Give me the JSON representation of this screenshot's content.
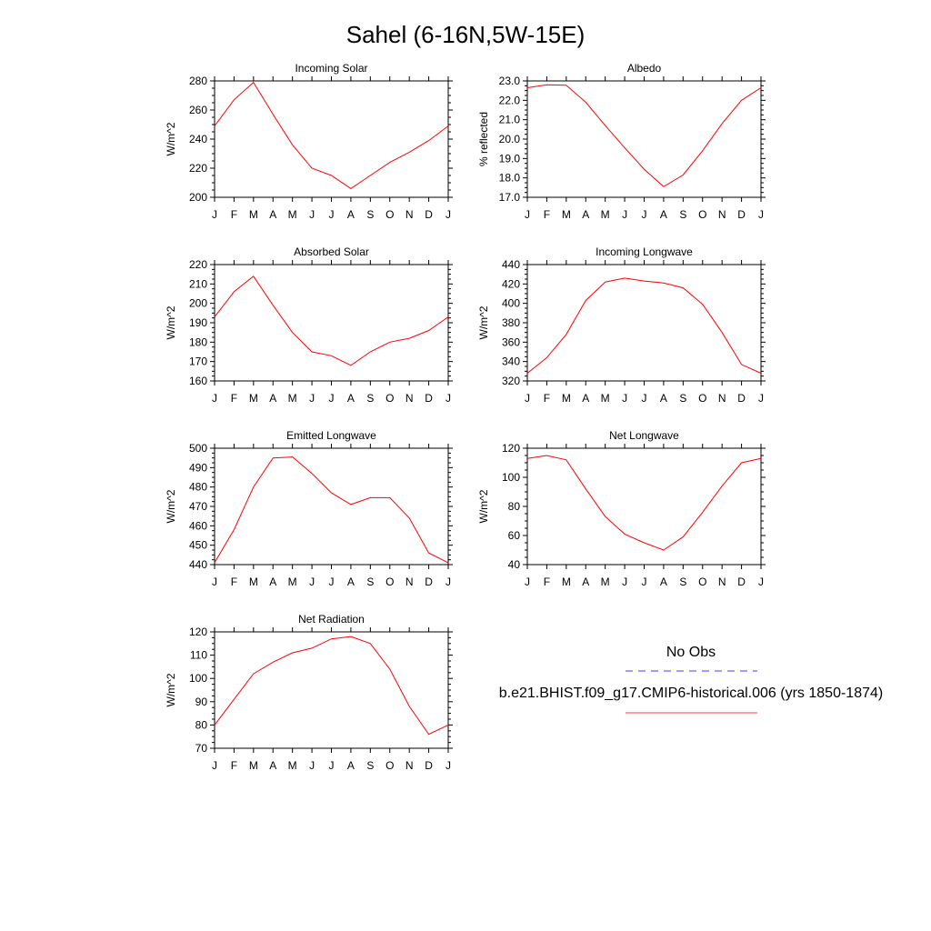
{
  "title": "Sahel (6-16N,5W-15E)",
  "months": [
    "J",
    "F",
    "M",
    "A",
    "M",
    "J",
    "J",
    "A",
    "S",
    "O",
    "N",
    "D",
    "J"
  ],
  "colors": {
    "model": "#ff0000",
    "obs": "#0000ff",
    "axis": "#000000"
  },
  "legend": {
    "obs_label": "No Obs",
    "model_label": "b.e21.BHIST.f09_g17.CMIP6-historical.006 (yrs 1850-1874)"
  },
  "chart_data": [
    {
      "type": "line",
      "title": "Incoming Solar",
      "ylabel": "W/m^2",
      "ylim": [
        200,
        280
      ],
      "yticks": [
        "200",
        "220",
        "240",
        "260",
        "280"
      ],
      "x": [
        "J",
        "F",
        "M",
        "A",
        "M",
        "J",
        "J",
        "A",
        "S",
        "O",
        "N",
        "D",
        "J"
      ],
      "series": [
        {
          "values": [
            249,
            267,
            279,
            257,
            236,
            220,
            215,
            206,
            215,
            224,
            231,
            239,
            249
          ]
        }
      ]
    },
    {
      "type": "line",
      "title": "Albedo",
      "ylabel": "% reflected",
      "ylim": [
        17.0,
        23.0
      ],
      "yticks": [
        "17.0",
        "18.0",
        "19.0",
        "20.0",
        "21.0",
        "22.0",
        "23.0"
      ],
      "x": [
        "J",
        "F",
        "M",
        "A",
        "M",
        "J",
        "J",
        "A",
        "S",
        "O",
        "N",
        "D",
        "J"
      ],
      "series": [
        {
          "values": [
            22.65,
            22.8,
            22.78,
            21.9,
            20.7,
            19.55,
            18.45,
            17.55,
            18.15,
            19.4,
            20.8,
            22.0,
            22.65
          ]
        }
      ]
    },
    {
      "type": "line",
      "title": "Absorbed Solar",
      "ylabel": "W/m^2",
      "ylim": [
        160,
        220
      ],
      "yticks": [
        "160",
        "170",
        "180",
        "190",
        "200",
        "210",
        "220"
      ],
      "x": [
        "J",
        "F",
        "M",
        "A",
        "M",
        "J",
        "J",
        "A",
        "S",
        "O",
        "N",
        "D",
        "J"
      ],
      "series": [
        {
          "values": [
            193,
            206,
            214,
            199,
            185,
            175,
            173,
            168,
            175,
            180,
            182,
            186,
            193
          ]
        }
      ]
    },
    {
      "type": "line",
      "title": "Incoming Longwave",
      "ylabel": "W/m^2",
      "ylim": [
        320,
        440
      ],
      "yticks": [
        "320",
        "340",
        "360",
        "380",
        "400",
        "420",
        "440"
      ],
      "x": [
        "J",
        "F",
        "M",
        "A",
        "M",
        "J",
        "J",
        "A",
        "S",
        "O",
        "N",
        "D",
        "J"
      ],
      "series": [
        {
          "values": [
            328,
            344,
            368,
            403,
            422,
            426,
            423,
            421,
            416,
            399,
            370,
            337,
            328
          ]
        }
      ]
    },
    {
      "type": "line",
      "title": "Emitted Longwave",
      "ylabel": "W/m^2",
      "ylim": [
        440,
        500
      ],
      "yticks": [
        "440",
        "450",
        "460",
        "470",
        "480",
        "490",
        "500"
      ],
      "x": [
        "J",
        "F",
        "M",
        "A",
        "M",
        "J",
        "J",
        "A",
        "S",
        "O",
        "N",
        "D",
        "J"
      ],
      "series": [
        {
          "values": [
            441,
            458,
            480,
            495,
            495.5,
            487,
            477,
            471,
            474.5,
            474.5,
            464,
            446,
            441
          ]
        }
      ]
    },
    {
      "type": "line",
      "title": "Net Longwave",
      "ylabel": "W/m^2",
      "ylim": [
        40,
        120
      ],
      "yticks": [
        "40",
        "60",
        "80",
        "100",
        "120"
      ],
      "x": [
        "J",
        "F",
        "M",
        "A",
        "M",
        "J",
        "J",
        "A",
        "S",
        "O",
        "N",
        "D",
        "J"
      ],
      "series": [
        {
          "values": [
            113,
            115,
            112,
            92,
            73,
            61,
            55,
            50,
            59,
            76,
            94,
            110,
            113
          ]
        }
      ]
    },
    {
      "type": "line",
      "title": "Net Radiation",
      "ylabel": "W/m^2",
      "ylim": [
        70,
        120
      ],
      "yticks": [
        "70",
        "80",
        "90",
        "100",
        "110",
        "120"
      ],
      "x": [
        "J",
        "F",
        "M",
        "A",
        "M",
        "J",
        "J",
        "A",
        "S",
        "O",
        "N",
        "D",
        "J"
      ],
      "series": [
        {
          "values": [
            80,
            91,
            102,
            107,
            111,
            113,
            117,
            118,
            115,
            104,
            88,
            76,
            80
          ]
        }
      ]
    }
  ]
}
